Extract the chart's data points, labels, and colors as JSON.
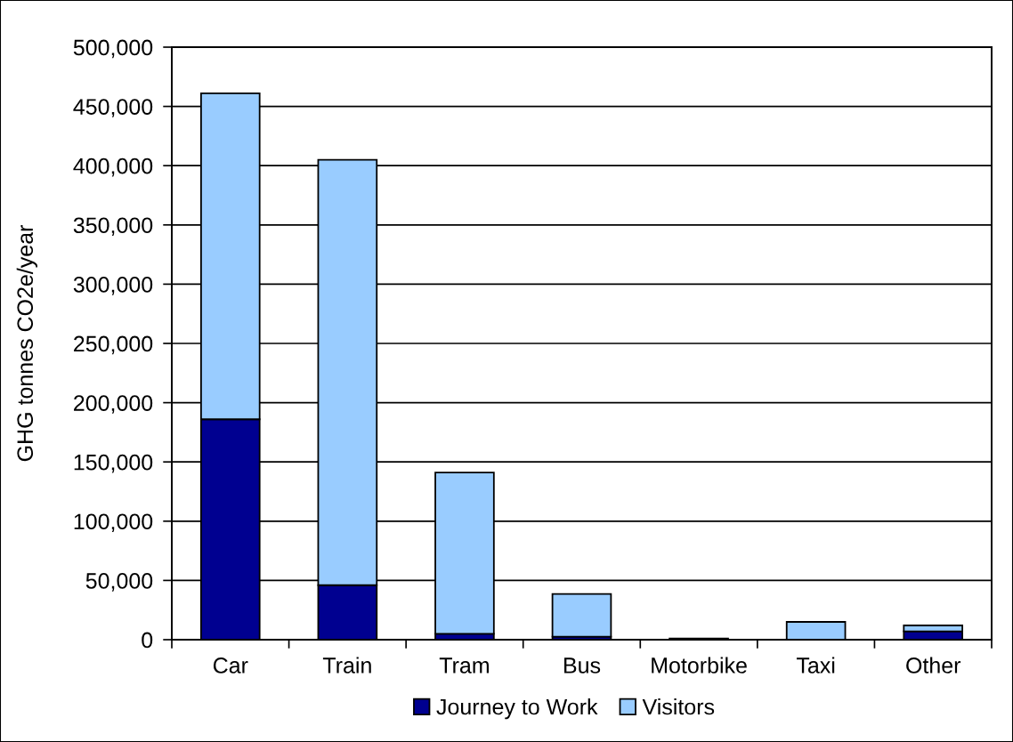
{
  "chart_data": {
    "type": "bar",
    "stacked": true,
    "ylabel": "GHG tonnes CO2e/year",
    "categories": [
      "Car",
      "Train",
      "Tram",
      "Bus",
      "Motorbike",
      "Taxi",
      "Other"
    ],
    "series": [
      {
        "name": "Journey to Work",
        "color": "#000090",
        "values": [
          186000,
          46000,
          5000,
          2500,
          1000,
          null,
          7000
        ]
      },
      {
        "name": "Visitors",
        "color": "#99ccff",
        "values": [
          275000,
          359000,
          136000,
          36000,
          null,
          15000,
          5000
        ]
      }
    ],
    "ylim": [
      0,
      500000
    ],
    "yticks": [
      {
        "value": 0,
        "label": "0"
      },
      {
        "value": 50000,
        "label": "50,000"
      },
      {
        "value": 100000,
        "label": "100,000"
      },
      {
        "value": 150000,
        "label": "150,000"
      },
      {
        "value": 200000,
        "label": "200,000"
      },
      {
        "value": 250000,
        "label": "250,000"
      },
      {
        "value": 300000,
        "label": "300,000"
      },
      {
        "value": 350000,
        "label": "350,000"
      },
      {
        "value": 400000,
        "label": "400,000"
      },
      {
        "value": 450000,
        "label": "450,000"
      },
      {
        "value": 500000,
        "label": "500,000"
      }
    ],
    "grid": "y",
    "legend": "bottom"
  }
}
